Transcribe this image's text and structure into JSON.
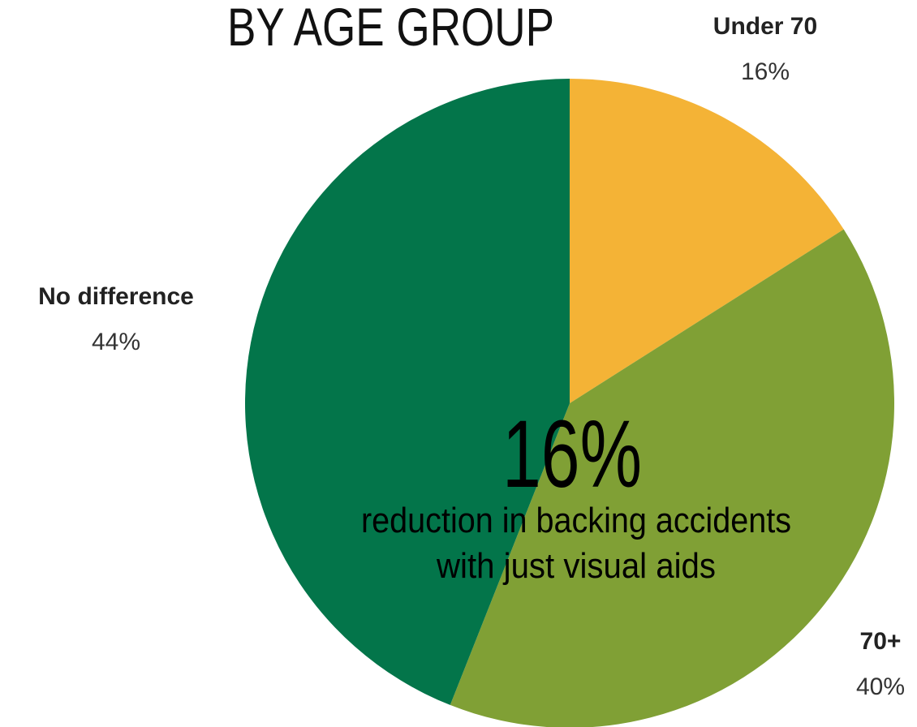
{
  "chart_data": {
    "type": "pie",
    "title": "BY AGE GROUP",
    "categories": [
      "Under 70",
      "70+",
      "No difference"
    ],
    "values": [
      16,
      40,
      44
    ],
    "value_labels": [
      "16%",
      "40%",
      "44%"
    ],
    "colors": [
      "#f4b336",
      "#80a035",
      "#03754a"
    ],
    "annotation": {
      "headline": "16%",
      "lines": [
        "reduction in backing accidents",
        "with just visual aids"
      ]
    }
  }
}
